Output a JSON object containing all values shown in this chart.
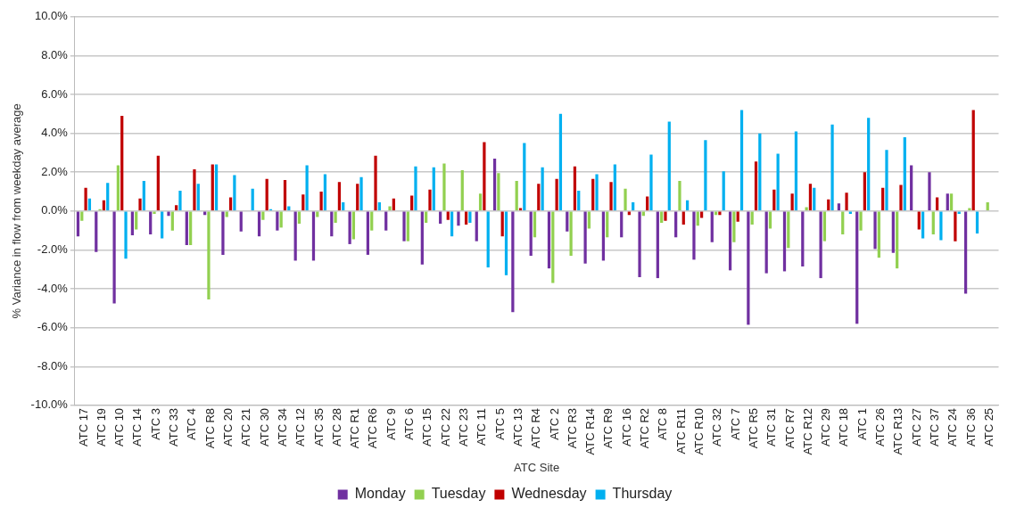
{
  "chart_data": {
    "type": "bar",
    "xlabel": "ATC Site",
    "ylabel": "% Variance in flow from weekday average",
    "categories": [
      "ATC 17",
      "ATC 19",
      "ATC 10",
      "ATC 14",
      "ATC 3",
      "ATC 33",
      "ATC 4",
      "ATC R8",
      "ATC 20",
      "ATC 21",
      "ATC 30",
      "ATC 34",
      "ATC 12",
      "ATC 35",
      "ATC 28",
      "ATC R1",
      "ATC R6",
      "ATC 9",
      "ATC 6",
      "ATC 15",
      "ATC 22",
      "ATC 23",
      "ATC 11",
      "ATC 5",
      "ATC 13",
      "ATC R4",
      "ATC 2",
      "ATC R3",
      "ATC R14",
      "ATC R9",
      "ATC 16",
      "ATC R2",
      "ATC 8",
      "ATC R11",
      "ATC R10",
      "ATC 32",
      "ATC 7",
      "ATC R5",
      "ATC 31",
      "ATC R7",
      "ATC R12",
      "ATC 29",
      "ATC 18",
      "ATC 1",
      "ATC 26",
      "ATC R13",
      "ATC 27",
      "ATC 37",
      "ATC 24",
      "ATC 36",
      "ATC 25"
    ],
    "series": [
      {
        "name": "Monday",
        "color": "#7030a0",
        "values": [
          -1.3,
          -2.1,
          -4.75,
          -1.25,
          -1.2,
          -0.25,
          -1.75,
          -0.2,
          -2.25,
          -1.05,
          -1.3,
          -1.0,
          -2.55,
          -2.55,
          -1.3,
          -1.7,
          -2.25,
          -1.0,
          -1.55,
          -2.75,
          -0.65,
          -0.75,
          -1.55,
          2.7,
          -5.2,
          -2.3,
          -2.95,
          -1.05,
          -2.7,
          -2.55,
          -1.35,
          -3.4,
          -3.45,
          -1.35,
          -2.5,
          -1.6,
          -3.05,
          -5.85,
          -3.2,
          -3.1,
          -2.85,
          -3.45,
          0.4,
          -5.8,
          -1.95,
          -2.15,
          2.35,
          2.0,
          0.9,
          -4.25,
          null
        ]
      },
      {
        "name": "Tuesday",
        "color": "#92d050",
        "values": [
          -0.5,
          0.1,
          2.35,
          -0.95,
          -0.15,
          -1.0,
          -1.75,
          -4.55,
          -0.3,
          null,
          -0.45,
          -0.85,
          -0.65,
          -0.3,
          -0.6,
          -1.45,
          -1.0,
          0.25,
          -1.55,
          -0.6,
          2.45,
          2.1,
          0.9,
          1.95,
          1.55,
          -1.35,
          -3.7,
          -2.3,
          -0.9,
          -1.35,
          1.15,
          -0.25,
          -0.6,
          1.55,
          -0.75,
          -0.2,
          -1.6,
          -0.7,
          -0.9,
          -1.9,
          0.2,
          -1.55,
          -1.2,
          -1.0,
          -2.4,
          -2.95,
          0,
          -1.2,
          0.9,
          0.15,
          0.45
        ]
      },
      {
        "name": "Wednesday",
        "color": "#c00000",
        "values": [
          1.2,
          0.55,
          4.9,
          0.65,
          2.85,
          0.3,
          2.15,
          2.4,
          0.7,
          0,
          1.65,
          1.6,
          0.85,
          1.0,
          1.5,
          1.4,
          2.85,
          0.65,
          0.8,
          1.1,
          -0.45,
          -0.7,
          3.55,
          -1.3,
          0.15,
          1.4,
          1.65,
          2.3,
          1.65,
          1.5,
          -0.2,
          0.75,
          -0.5,
          -0.7,
          -0.35,
          -0.2,
          -0.55,
          2.55,
          1.1,
          0.9,
          1.4,
          0.6,
          0.95,
          2.0,
          1.2,
          1.35,
          -0.95,
          0.7,
          -1.55,
          5.2,
          null
        ]
      },
      {
        "name": "Thursday",
        "color": "#00b0f0",
        "values": [
          0.65,
          1.45,
          -2.45,
          1.55,
          -1.4,
          1.05,
          1.4,
          2.4,
          1.85,
          1.15,
          0.1,
          0.25,
          2.35,
          1.9,
          0.45,
          1.75,
          0.45,
          null,
          2.3,
          2.25,
          -1.3,
          -0.6,
          -2.9,
          -3.3,
          3.5,
          2.25,
          5.0,
          1.05,
          1.9,
          2.4,
          0.45,
          2.9,
          4.6,
          0.55,
          3.65,
          2.05,
          5.2,
          4.0,
          2.95,
          4.1,
          1.2,
          4.45,
          -0.15,
          4.8,
          3.15,
          3.8,
          -1.4,
          -1.5,
          -0.15,
          -1.15,
          null
        ]
      }
    ],
    "ylim": [
      -10,
      10
    ],
    "yticks": [
      {
        "value": -10,
        "label": "-10.0%"
      },
      {
        "value": -8,
        "label": "-8.0%"
      },
      {
        "value": -6,
        "label": "-6.0%"
      },
      {
        "value": -4,
        "label": "-4.0%"
      },
      {
        "value": -2,
        "label": "-2.0%"
      },
      {
        "value": 0,
        "label": "0.0%"
      },
      {
        "value": 2,
        "label": "2.0%"
      },
      {
        "value": 4,
        "label": "4.0%"
      },
      {
        "value": 6,
        "label": "6.0%"
      },
      {
        "value": 8,
        "label": "8.0%"
      },
      {
        "value": 10,
        "label": "10.0%"
      }
    ],
    "grid": "y",
    "legend": "bottom"
  }
}
